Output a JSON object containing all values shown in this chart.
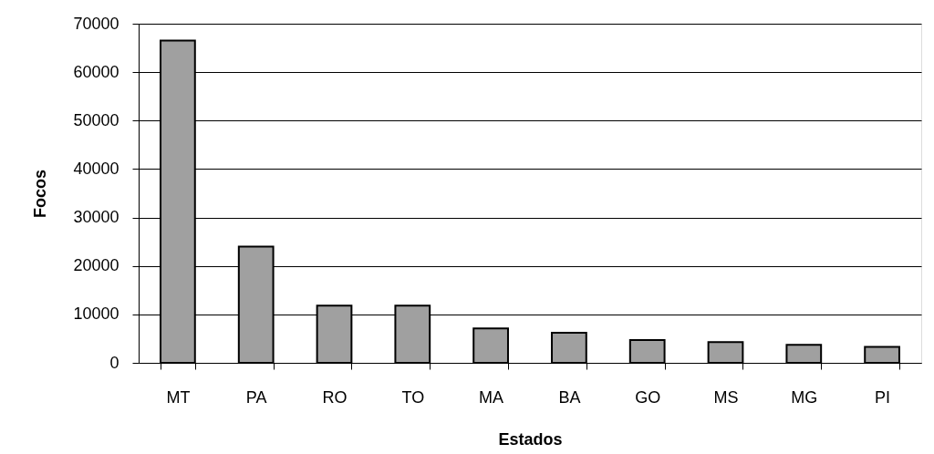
{
  "chart_data": {
    "type": "bar",
    "xlabel": "Estados",
    "ylabel": "Focos",
    "categories": [
      "MT",
      "PA",
      "RO",
      "TO",
      "MA",
      "BA",
      "GO",
      "MS",
      "MG",
      "PI"
    ],
    "values": [
      66500,
      24000,
      11800,
      11800,
      7100,
      6200,
      4700,
      4300,
      3700,
      3300
    ],
    "color": "#a0a0a0",
    "ylim": [
      0,
      70000
    ],
    "yticks": [
      0,
      10000,
      20000,
      30000,
      40000,
      50000,
      60000,
      70000
    ],
    "grid": "y"
  }
}
